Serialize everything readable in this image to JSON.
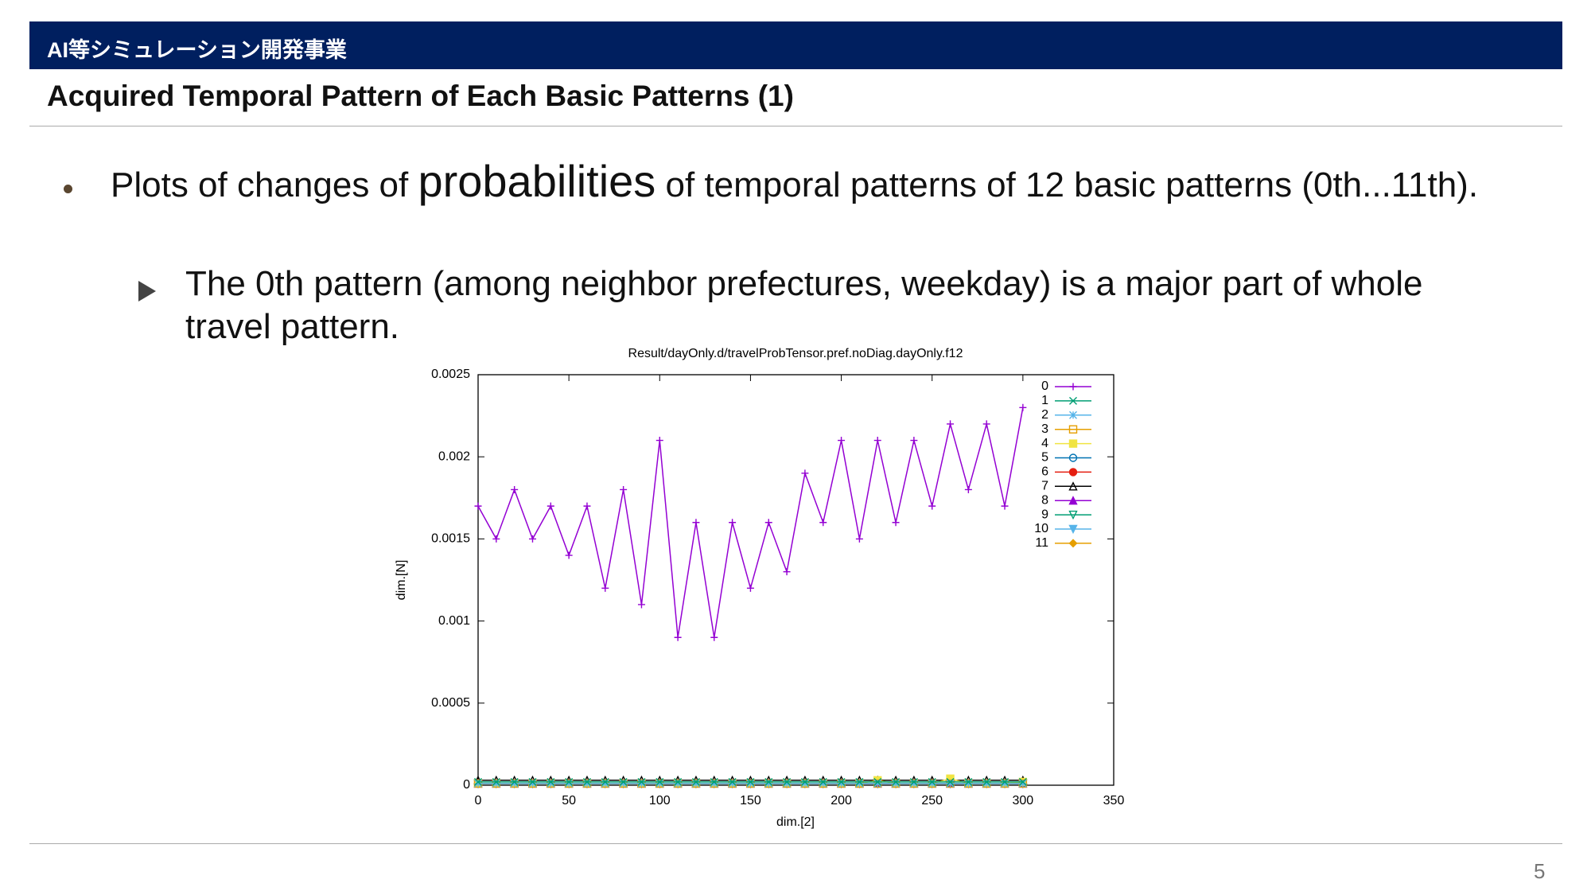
{
  "header": {
    "section": "AI等シミュレーション開発事業",
    "title": "Acquired Temporal Pattern of Each Basic Patterns (1)"
  },
  "bullets": [
    {
      "parts": [
        "Plots of changes of ",
        "probabilities",
        " of temporal patterns of 12 basic patterns (0th...11th)."
      ],
      "sub": [
        "The 0th pattern (among neighbor prefectures, weekday) is a major part of whole travel pattern."
      ]
    }
  ],
  "page_number": 5,
  "chart_data": {
    "type": "line",
    "title": "Result/dayOnly.d/travelProbTensor.pref.noDiag.dayOnly.f12",
    "x_label": "dim.[2]",
    "y_label": "dim.[N]",
    "xlim": [
      0,
      350
    ],
    "xticks": [
      0,
      50,
      100,
      150,
      200,
      250,
      300,
      350
    ],
    "ylim": [
      0,
      0.0025
    ],
    "yticks": [
      0,
      0.0005,
      0.001,
      0.0015,
      0.002,
      0.0025
    ],
    "grid": false,
    "legend": "top-right",
    "x": [
      0,
      10,
      20,
      30,
      40,
      50,
      60,
      70,
      80,
      90,
      100,
      110,
      120,
      130,
      140,
      150,
      160,
      170,
      180,
      190,
      200,
      210,
      220,
      230,
      240,
      250,
      260,
      270,
      280,
      290,
      300
    ],
    "series": [
      {
        "name": "0",
        "color": "#9400d3",
        "marker": "plus",
        "values": [
          0.0017,
          0.0015,
          0.0018,
          0.0015,
          0.0017,
          0.0014,
          0.0017,
          0.0012,
          0.0018,
          0.0011,
          0.0021,
          0.0009,
          0.0016,
          0.0009,
          0.0016,
          0.0012,
          0.0016,
          0.0013,
          0.0019,
          0.0016,
          0.0021,
          0.0015,
          0.0021,
          0.0016,
          0.0021,
          0.0017,
          0.0022,
          0.0018,
          0.0022,
          0.0017,
          0.0023
        ]
      },
      {
        "name": "1",
        "color": "#009e73",
        "marker": "cross",
        "values": [
          2e-05,
          2e-05,
          2e-05,
          2e-05,
          2e-05,
          2e-05,
          2e-05,
          2e-05,
          2e-05,
          2e-05,
          2e-05,
          2e-05,
          2e-05,
          2e-05,
          2e-05,
          2e-05,
          2e-05,
          2e-05,
          2e-05,
          2e-05,
          2e-05,
          2e-05,
          2e-05,
          2e-05,
          2e-05,
          2e-05,
          2e-05,
          2e-05,
          2e-05,
          2e-05,
          2e-05
        ]
      },
      {
        "name": "2",
        "color": "#56b4e9",
        "marker": "star",
        "values": [
          1e-05,
          1e-05,
          1e-05,
          1e-05,
          1e-05,
          1e-05,
          1e-05,
          1e-05,
          1e-05,
          1e-05,
          1e-05,
          1e-05,
          1e-05,
          1e-05,
          1e-05,
          1e-05,
          1e-05,
          1e-05,
          1e-05,
          1e-05,
          1e-05,
          1e-05,
          1e-05,
          1e-05,
          1e-05,
          1e-05,
          1e-05,
          1e-05,
          1e-05,
          1e-05,
          1e-05
        ]
      },
      {
        "name": "3",
        "color": "#e69f00",
        "marker": "square-open",
        "values": [
          1e-05,
          1e-05,
          1e-05,
          1e-05,
          1e-05,
          1e-05,
          1e-05,
          1e-05,
          1e-05,
          1e-05,
          1e-05,
          1e-05,
          1e-05,
          1e-05,
          1e-05,
          1e-05,
          1e-05,
          1e-05,
          1e-05,
          1e-05,
          1e-05,
          1e-05,
          1e-05,
          1e-05,
          1e-05,
          1e-05,
          1e-05,
          1e-05,
          1e-05,
          1e-05,
          1e-05
        ]
      },
      {
        "name": "4",
        "color": "#f0e442",
        "marker": "square",
        "values": [
          1e-05,
          1e-05,
          1e-05,
          1e-05,
          1e-05,
          1e-05,
          1e-05,
          1e-05,
          1e-05,
          1e-05,
          1e-05,
          1e-05,
          1e-05,
          1e-05,
          1e-05,
          1e-05,
          1e-05,
          1e-05,
          1e-05,
          1e-05,
          1e-05,
          1e-05,
          3e-05,
          1e-05,
          1e-05,
          1e-05,
          4e-05,
          1e-05,
          1e-05,
          1e-05,
          2e-05
        ]
      },
      {
        "name": "5",
        "color": "#0072b2",
        "marker": "circle-open",
        "values": [
          1e-05,
          1e-05,
          1e-05,
          1e-05,
          1e-05,
          1e-05,
          1e-05,
          1e-05,
          1e-05,
          1e-05,
          1e-05,
          1e-05,
          1e-05,
          1e-05,
          1e-05,
          1e-05,
          1e-05,
          1e-05,
          1e-05,
          1e-05,
          1e-05,
          1e-05,
          1e-05,
          1e-05,
          1e-05,
          1e-05,
          1e-05,
          1e-05,
          1e-05,
          1e-05,
          1e-05
        ]
      },
      {
        "name": "6",
        "color": "#e51e10",
        "marker": "circle",
        "values": [
          1e-05,
          1e-05,
          1e-05,
          1e-05,
          1e-05,
          1e-05,
          1e-05,
          1e-05,
          1e-05,
          1e-05,
          1e-05,
          1e-05,
          1e-05,
          1e-05,
          1e-05,
          1e-05,
          1e-05,
          1e-05,
          1e-05,
          1e-05,
          1e-05,
          1e-05,
          1e-05,
          1e-05,
          1e-05,
          1e-05,
          1e-05,
          1e-05,
          1e-05,
          1e-05,
          1e-05
        ]
      },
      {
        "name": "7",
        "color": "#000000",
        "marker": "triangle-open",
        "values": [
          3e-05,
          3e-05,
          3e-05,
          3e-05,
          3e-05,
          3e-05,
          3e-05,
          3e-05,
          3e-05,
          3e-05,
          3e-05,
          3e-05,
          3e-05,
          3e-05,
          3e-05,
          3e-05,
          3e-05,
          3e-05,
          3e-05,
          3e-05,
          3e-05,
          3e-05,
          3e-05,
          3e-05,
          3e-05,
          3e-05,
          3e-05,
          3e-05,
          3e-05,
          3e-05,
          3e-05
        ]
      },
      {
        "name": "8",
        "color": "#9400d3",
        "marker": "triangle",
        "values": [
          1e-05,
          1e-05,
          1e-05,
          1e-05,
          1e-05,
          1e-05,
          1e-05,
          1e-05,
          1e-05,
          1e-05,
          1e-05,
          1e-05,
          1e-05,
          1e-05,
          1e-05,
          1e-05,
          1e-05,
          1e-05,
          1e-05,
          1e-05,
          1e-05,
          1e-05,
          1e-05,
          1e-05,
          1e-05,
          1e-05,
          1e-05,
          1e-05,
          1e-05,
          1e-05,
          1e-05
        ]
      },
      {
        "name": "9",
        "color": "#009e73",
        "marker": "triangle-down-open",
        "values": [
          1e-05,
          1e-05,
          1e-05,
          1e-05,
          1e-05,
          1e-05,
          1e-05,
          1e-05,
          1e-05,
          1e-05,
          1e-05,
          1e-05,
          1e-05,
          1e-05,
          1e-05,
          1e-05,
          1e-05,
          1e-05,
          1e-05,
          1e-05,
          1e-05,
          1e-05,
          1e-05,
          1e-05,
          1e-05,
          1e-05,
          1e-05,
          1e-05,
          1e-05,
          1e-05,
          1e-05
        ]
      },
      {
        "name": "10",
        "color": "#56b4e9",
        "marker": "triangle-down",
        "values": [
          1e-05,
          1e-05,
          1e-05,
          1e-05,
          1e-05,
          1e-05,
          1e-05,
          1e-05,
          1e-05,
          1e-05,
          1e-05,
          1e-05,
          1e-05,
          1e-05,
          1e-05,
          1e-05,
          1e-05,
          1e-05,
          1e-05,
          1e-05,
          1e-05,
          1e-05,
          1e-05,
          1e-05,
          1e-05,
          1e-05,
          1e-05,
          1e-05,
          1e-05,
          1e-05,
          1e-05
        ]
      },
      {
        "name": "11",
        "color": "#e69f00",
        "marker": "diamond",
        "values": [
          1e-05,
          1e-05,
          1e-05,
          1e-05,
          1e-05,
          1e-05,
          1e-05,
          1e-05,
          1e-05,
          1e-05,
          1e-05,
          1e-05,
          1e-05,
          1e-05,
          1e-05,
          1e-05,
          1e-05,
          1e-05,
          1e-05,
          1e-05,
          1e-05,
          1e-05,
          1e-05,
          1e-05,
          1e-05,
          1e-05,
          1e-05,
          1e-05,
          1e-05,
          1e-05,
          1e-05
        ]
      }
    ]
  }
}
